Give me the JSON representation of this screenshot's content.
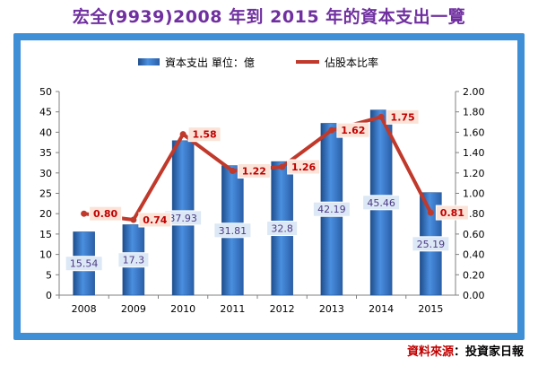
{
  "title": "宏全(9939)2008 年到 2015 年的資本支出一覽",
  "source": {
    "label": "資料來源",
    "separator": "：",
    "value": "投資家日報"
  },
  "chart_data": {
    "type": "bar",
    "categories": [
      "2008",
      "2009",
      "2010",
      "2011",
      "2012",
      "2013",
      "2014",
      "2015"
    ],
    "series": [
      {
        "name": "資本支出 單位：億",
        "type": "bar",
        "axis": "left",
        "color": "#2f6fbf",
        "values": [
          15.54,
          17.3,
          37.93,
          31.81,
          32.8,
          42.19,
          45.46,
          25.19
        ],
        "labels": [
          "15.54",
          "17.3",
          "37.93",
          "31.81",
          "32.8",
          "42.19",
          "45.46",
          "25.19"
        ]
      },
      {
        "name": "佔股本比率",
        "type": "line",
        "axis": "right",
        "color": "#c0392b",
        "values": [
          0.8,
          0.74,
          1.58,
          1.22,
          1.26,
          1.62,
          1.75,
          0.81
        ],
        "labels": [
          "0.80",
          "0.74",
          "1.58",
          "1.22",
          "1.26",
          "1.62",
          "1.75",
          "0.81"
        ]
      }
    ],
    "y_left": {
      "range": [
        0,
        50
      ],
      "ticks": [
        "0",
        "5",
        "10",
        "15",
        "20",
        "25",
        "30",
        "35",
        "40",
        "45",
        "50"
      ]
    },
    "y_right": {
      "range": [
        0,
        2
      ],
      "ticks": [
        "0.00",
        "0.20",
        "0.40",
        "0.60",
        "0.80",
        "1.00",
        "1.20",
        "1.40",
        "1.60",
        "1.80",
        "2.00"
      ]
    },
    "grid": false,
    "legend_position": "top"
  }
}
